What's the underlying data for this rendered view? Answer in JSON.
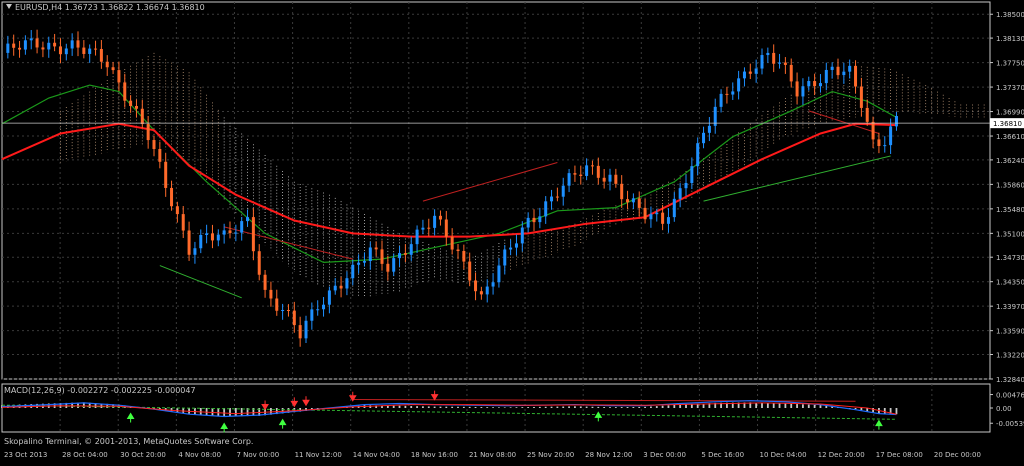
{
  "window": {
    "symbol_header": "EURUSD,H4  1.36723 1.36822 1.36674 1.36810",
    "macd_header": "MACD(12,26,9) -0.002272 -0.002225 -0.000047",
    "copyright": "Skopalino Terminal, © 2001-2013, MetaQuotes Software Corp."
  },
  "colors": {
    "background": "#000000",
    "grid": "#3a3a3a",
    "axis": "#c8c8c8",
    "bull_candle": "#1e90ff",
    "bear_candle": "#ff6a2b",
    "ma_red": "#ff1a1a",
    "ma_green": "#1a9a1a",
    "kumo_tan": "#d9b08c",
    "kumo_white": "#e6e6e6",
    "macd_hist": "#c8c8c8",
    "macd_line": "#1e6cff",
    "signal_line": "#ff2020"
  },
  "chart_data": [
    {
      "type": "candlestick",
      "title": "EURUSD,H4",
      "ohlc_header": "1.36723 1.36822 1.36674 1.36810",
      "current_price": 1.3681,
      "current_price_label": "1.36810",
      "ylim": [
        1.3284,
        1.3869
      ],
      "y_ticks": [
        "1.38500",
        "1.38130",
        "1.37750",
        "1.37370",
        "1.36990",
        "1.36610",
        "1.36240",
        "1.35860",
        "1.35480",
        "1.35100",
        "1.34730",
        "1.34350",
        "1.33970",
        "1.33590",
        "1.33220",
        "1.32840"
      ],
      "x_ticks": [
        "23 Oct 2013",
        "28 Oct 04:00",
        "30 Oct 20:00",
        "4 Nov 08:00",
        "7 Nov 00:00",
        "11 Nov 12:00",
        "14 Nov 04:00",
        "18 Nov 16:00",
        "21 Nov 08:00",
        "25 Nov 20:00",
        "28 Nov 12:00",
        "3 Dec 00:00",
        "5 Dec 16:00",
        "10 Dec 04:00",
        "12 Dec 20:00",
        "17 Dec 08:00",
        "20 Dec 00:00"
      ],
      "close_path": [
        [
          0,
          1.379
        ],
        [
          6,
          1.3805
        ],
        [
          12,
          1.38
        ],
        [
          18,
          1.3775
        ],
        [
          22,
          1.3715
        ],
        [
          25,
          1.366
        ],
        [
          28,
          1.358
        ],
        [
          32,
          1.349
        ],
        [
          35,
          1.351
        ],
        [
          38,
          1.35
        ],
        [
          42,
          1.353
        ],
        [
          45,
          1.342
        ],
        [
          48,
          1.339
        ],
        [
          51,
          1.335
        ],
        [
          54,
          1.34
        ],
        [
          57,
          1.343
        ],
        [
          60,
          1.345
        ],
        [
          63,
          1.348
        ],
        [
          66,
          1.346
        ],
        [
          70,
          1.35
        ],
        [
          74,
          1.353
        ],
        [
          78,
          1.348
        ],
        [
          80,
          1.345
        ],
        [
          82,
          1.341
        ],
        [
          86,
          1.347
        ],
        [
          90,
          1.353
        ],
        [
          95,
          1.3575
        ],
        [
          100,
          1.361
        ],
        [
          104,
          1.36
        ],
        [
          107,
          1.356
        ],
        [
          110,
          1.3535
        ],
        [
          113,
          1.353
        ],
        [
          116,
          1.358
        ],
        [
          119,
          1.364
        ],
        [
          122,
          1.37
        ],
        [
          125,
          1.374
        ],
        [
          128,
          1.377
        ],
        [
          131,
          1.3785
        ],
        [
          133,
          1.377
        ],
        [
          136,
          1.373
        ],
        [
          139,
          1.375
        ],
        [
          142,
          1.3765
        ],
        [
          145,
          1.3755
        ],
        [
          147,
          1.371
        ],
        [
          149,
          1.365
        ],
        [
          151,
          1.366
        ],
        [
          153,
          1.369
        ]
      ],
      "ma_red": [
        [
          0,
          1.3625
        ],
        [
          10,
          1.3665
        ],
        [
          20,
          1.368
        ],
        [
          26,
          1.367
        ],
        [
          32,
          1.3615
        ],
        [
          40,
          1.357
        ],
        [
          50,
          1.353
        ],
        [
          60,
          1.351
        ],
        [
          70,
          1.3505
        ],
        [
          80,
          1.3505
        ],
        [
          90,
          1.351
        ],
        [
          100,
          1.3525
        ],
        [
          110,
          1.3535
        ],
        [
          120,
          1.358
        ],
        [
          130,
          1.3625
        ],
        [
          140,
          1.3665
        ],
        [
          146,
          1.368
        ],
        [
          153,
          1.3678
        ]
      ],
      "ma_green": [
        [
          0,
          1.368
        ],
        [
          8,
          1.372
        ],
        [
          15,
          1.374
        ],
        [
          20,
          1.373
        ],
        [
          26,
          1.367
        ],
        [
          35,
          1.359
        ],
        [
          45,
          1.351
        ],
        [
          55,
          1.3465
        ],
        [
          65,
          1.347
        ],
        [
          75,
          1.349
        ],
        [
          85,
          1.351
        ],
        [
          95,
          1.3545
        ],
        [
          105,
          1.355
        ],
        [
          115,
          1.359
        ],
        [
          125,
          1.366
        ],
        [
          135,
          1.37
        ],
        [
          142,
          1.373
        ],
        [
          148,
          1.3715
        ],
        [
          153,
          1.369
        ]
      ],
      "kumo_upper": [
        [
          10,
          1.37
        ],
        [
          20,
          1.376
        ],
        [
          26,
          1.379
        ],
        [
          32,
          1.376
        ],
        [
          38,
          1.369
        ],
        [
          44,
          1.364
        ],
        [
          50,
          1.359
        ],
        [
          56,
          1.357
        ],
        [
          62,
          1.354
        ],
        [
          68,
          1.351
        ],
        [
          74,
          1.349
        ],
        [
          80,
          1.347
        ],
        [
          86,
          1.35
        ],
        [
          92,
          1.351
        ],
        [
          98,
          1.3525
        ],
        [
          104,
          1.355
        ],
        [
          110,
          1.357
        ],
        [
          116,
          1.36
        ],
        [
          122,
          1.364
        ],
        [
          128,
          1.368
        ],
        [
          134,
          1.372
        ],
        [
          140,
          1.375
        ],
        [
          146,
          1.377
        ],
        [
          152,
          1.3765
        ],
        [
          158,
          1.374
        ],
        [
          164,
          1.371
        ],
        [
          168,
          1.371
        ]
      ],
      "kumo_lower": [
        [
          10,
          1.362
        ],
        [
          20,
          1.364
        ],
        [
          26,
          1.365
        ],
        [
          32,
          1.362
        ],
        [
          38,
          1.356
        ],
        [
          44,
          1.35
        ],
        [
          50,
          1.345
        ],
        [
          56,
          1.342
        ],
        [
          62,
          1.341
        ],
        [
          68,
          1.342
        ],
        [
          74,
          1.344
        ],
        [
          80,
          1.343
        ],
        [
          86,
          1.345
        ],
        [
          92,
          1.347
        ],
        [
          98,
          1.349
        ],
        [
          104,
          1.352
        ],
        [
          110,
          1.3535
        ],
        [
          116,
          1.355
        ],
        [
          122,
          1.359
        ],
        [
          128,
          1.362
        ],
        [
          134,
          1.366
        ],
        [
          140,
          1.368
        ],
        [
          146,
          1.369
        ],
        [
          152,
          1.37
        ],
        [
          158,
          1.3695
        ],
        [
          164,
          1.369
        ],
        [
          168,
          1.369
        ]
      ],
      "kumo_white_segment": [
        38,
        86
      ],
      "trend_lines_red": [
        [
          [
            38,
            1.352
          ],
          [
            60,
            1.347
          ]
        ],
        [
          [
            72,
            1.356
          ],
          [
            95,
            1.362
          ]
        ],
        [
          [
            138,
            1.37
          ],
          [
            150,
            1.3665
          ]
        ]
      ],
      "trend_lines_green": [
        [
          [
            27,
            1.346
          ],
          [
            41,
            1.341
          ]
        ],
        [
          [
            120,
            1.356
          ],
          [
            152,
            1.363
          ]
        ]
      ],
      "x_count": 170
    },
    {
      "type": "macd",
      "title": "MACD(12,26,9)",
      "values_header": "-0.002272 -0.002225 -0.000047",
      "params": [
        12,
        26,
        9
      ],
      "ylim": [
        -0.0085,
        0.0085
      ],
      "y_ticks": [
        "0.004767",
        "0.00",
        "-0.005396"
      ],
      "histogram": [
        [
          0,
          0.001
        ],
        [
          8,
          0.0016
        ],
        [
          14,
          0.002
        ],
        [
          20,
          0.0012
        ],
        [
          26,
          -0.0005
        ],
        [
          32,
          -0.002
        ],
        [
          38,
          -0.003
        ],
        [
          44,
          -0.0028
        ],
        [
          50,
          -0.0015
        ],
        [
          56,
          -0.0002
        ],
        [
          62,
          0.001
        ],
        [
          68,
          0.0008
        ],
        [
          74,
          0.0005
        ],
        [
          80,
          0.0004
        ],
        [
          86,
          0.0002
        ],
        [
          92,
          0.0004
        ],
        [
          98,
          0.0006
        ],
        [
          104,
          0.0003
        ],
        [
          110,
          0.0004
        ],
        [
          116,
          0.0012
        ],
        [
          122,
          0.0018
        ],
        [
          128,
          0.002
        ],
        [
          134,
          0.0016
        ],
        [
          140,
          0.001
        ],
        [
          146,
          -0.0004
        ],
        [
          150,
          -0.002
        ],
        [
          153,
          -0.0022
        ]
      ],
      "macd_line": [
        [
          0,
          0.0005
        ],
        [
          8,
          0.0012
        ],
        [
          14,
          0.0018
        ],
        [
          20,
          0.001
        ],
        [
          26,
          -0.0004
        ],
        [
          32,
          -0.0022
        ],
        [
          38,
          -0.003
        ],
        [
          44,
          -0.0025
        ],
        [
          50,
          -0.0012
        ],
        [
          56,
          0.0
        ],
        [
          62,
          0.0012
        ],
        [
          68,
          0.0016
        ],
        [
          74,
          0.0012
        ],
        [
          80,
          0.001
        ],
        [
          86,
          0.0008
        ],
        [
          92,
          0.001
        ],
        [
          98,
          0.0012
        ],
        [
          104,
          0.0008
        ],
        [
          110,
          0.0008
        ],
        [
          116,
          0.0016
        ],
        [
          122,
          0.0022
        ],
        [
          128,
          0.0026
        ],
        [
          134,
          0.0022
        ],
        [
          140,
          0.0012
        ],
        [
          146,
          -0.0006
        ],
        [
          150,
          -0.002
        ],
        [
          153,
          -0.0023
        ]
      ],
      "signal_line": [
        [
          0,
          0.0002
        ],
        [
          10,
          0.0008
        ],
        [
          20,
          0.0006
        ],
        [
          30,
          -0.001
        ],
        [
          40,
          -0.002
        ],
        [
          50,
          -0.001
        ],
        [
          60,
          0.0004
        ],
        [
          70,
          0.0012
        ],
        [
          80,
          0.0012
        ],
        [
          90,
          0.001
        ],
        [
          100,
          0.0011
        ],
        [
          110,
          0.001
        ],
        [
          120,
          0.0014
        ],
        [
          130,
          0.0018
        ],
        [
          140,
          0.0014
        ],
        [
          148,
          0.0
        ],
        [
          153,
          -0.0022
        ]
      ],
      "arrows_up": [
        22,
        38,
        48,
        102,
        150
      ],
      "arrows_down": [
        45,
        50,
        52,
        60,
        74
      ],
      "trend_line_green": [
        [
          0,
          0.001
        ],
        [
          153,
          -0.004
        ]
      ],
      "trend_line_red": [
        [
          60,
          0.003
        ],
        [
          146,
          0.0024
        ]
      ]
    }
  ]
}
